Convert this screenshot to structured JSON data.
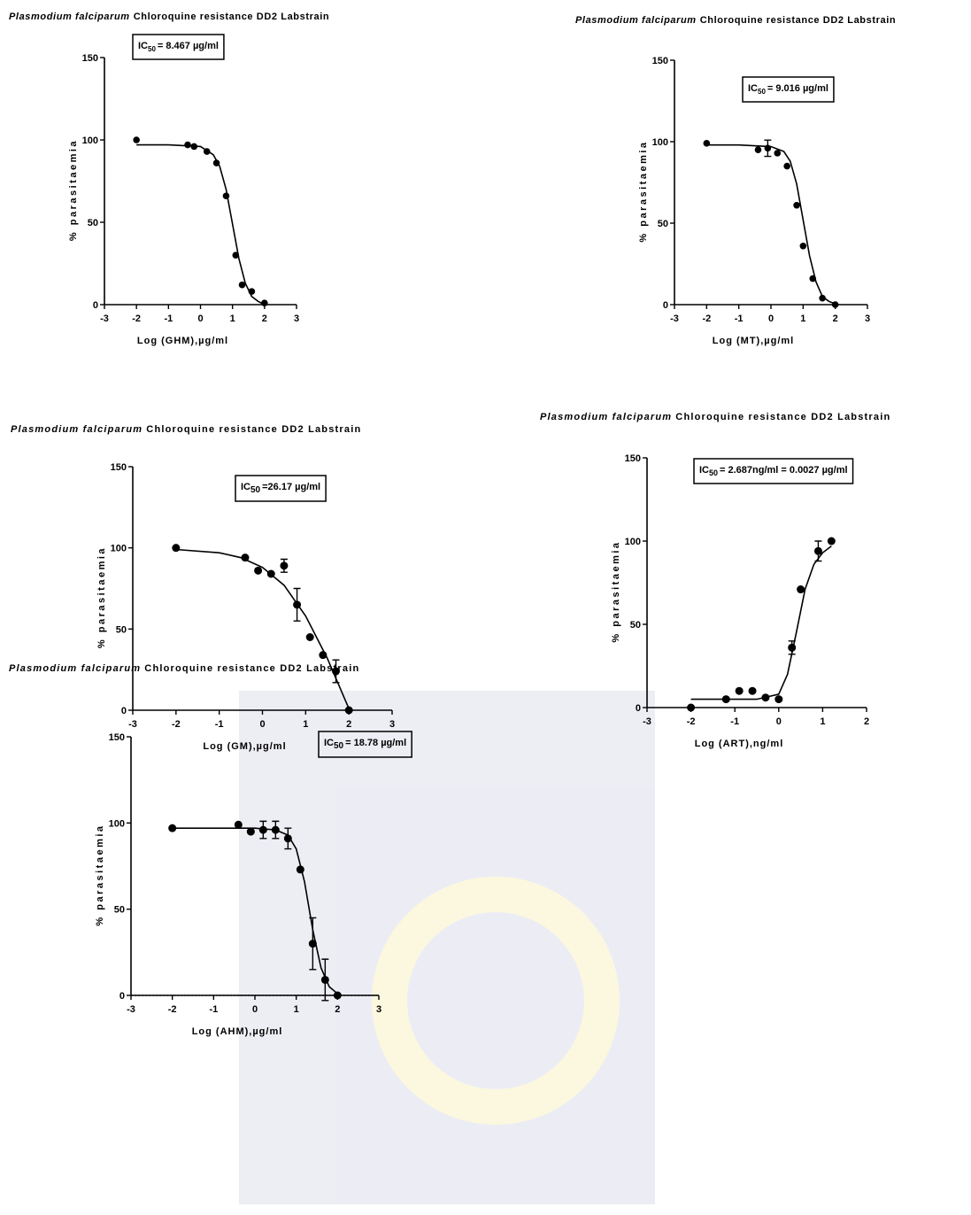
{
  "chart_data": [
    {
      "type": "scatter",
      "title_species": "Plasmodium falciparum",
      "title": "Chloroquine resistance DD2 Labstrain",
      "annotation": {
        "prefix": "IC",
        "subscript": "50",
        "text": "= 8.467 µg/ml"
      },
      "x_label": "Log (GHM),µg/ml",
      "y_label": "% parasitaemia",
      "color": "#000000",
      "x": [
        -2,
        -0.4,
        -0.2,
        0.2,
        0.5,
        0.8,
        1.1,
        1.3,
        1.6,
        2.0
      ],
      "values": [
        100,
        97,
        96,
        93,
        86,
        66,
        30,
        12,
        8,
        1
      ],
      "curve": {
        "x": [
          -2,
          -1,
          0,
          0.4,
          0.6,
          0.8,
          1.0,
          1.2,
          1.4,
          1.6,
          1.8,
          2.0
        ],
        "y": [
          97,
          97,
          96,
          91,
          84,
          70,
          49,
          28,
          13,
          5,
          2,
          0
        ]
      },
      "xlim": [
        -3,
        3
      ],
      "ylim": [
        0,
        150
      ],
      "xticks": [
        -3,
        -2,
        -1,
        0,
        1,
        2,
        3
      ],
      "yticks": [
        0,
        50,
        100,
        150
      ]
    },
    {
      "type": "scatter",
      "title_species": "Plasmodium falciparum",
      "title": "Chloroquine resistance DD2 Labstrain",
      "annotation": {
        "prefix": "IC",
        "subscript": "50",
        "text": "= 9.016 µg/ml"
      },
      "x_label": "Log (MT),µg/ml",
      "y_label": "% parasitaemia",
      "color": "#000000",
      "x": [
        -2,
        -0.4,
        -0.1,
        0.2,
        0.5,
        0.8,
        1.0,
        1.3,
        1.6,
        2.0
      ],
      "values": [
        99,
        95,
        96,
        93,
        85,
        61,
        36,
        16,
        4,
        0
      ],
      "errors": [
        null,
        null,
        5,
        null,
        null,
        null,
        null,
        null,
        null,
        null
      ],
      "curve": {
        "x": [
          -2,
          -1,
          0,
          0.4,
          0.6,
          0.8,
          1.0,
          1.2,
          1.4,
          1.6,
          1.8,
          2.0
        ],
        "y": [
          98,
          98,
          97,
          94,
          88,
          74,
          52,
          30,
          14,
          5,
          2,
          0.5
        ]
      },
      "xlim": [
        -3,
        3
      ],
      "ylim": [
        0,
        150
      ],
      "xticks": [
        -3,
        -2,
        -1,
        0,
        1,
        2,
        3
      ],
      "yticks": [
        0,
        50,
        100,
        150
      ]
    },
    {
      "type": "scatter",
      "title_species": "Plasmodium falciparum",
      "title": "Chloroquine resistance DD2 Labstrain",
      "annotation": {
        "prefix": "IC",
        "subscript": "50",
        "text": "=26.17 µg/ml"
      },
      "x_label": "Log (GM),µg/ml",
      "y_label": "% parasitaemia",
      "color": "#000000",
      "x": [
        -2,
        -0.4,
        -0.1,
        0.2,
        0.5,
        0.8,
        1.1,
        1.4,
        1.7,
        2.0
      ],
      "values": [
        100,
        94,
        86,
        84,
        89,
        65,
        45,
        34,
        24,
        0
      ],
      "errors": [
        null,
        null,
        null,
        null,
        4,
        10,
        null,
        null,
        7,
        null
      ],
      "curve": {
        "x": [
          -2,
          -1,
          -0.5,
          0,
          0.5,
          1,
          1.5,
          2
        ],
        "y": [
          99,
          97,
          94,
          88,
          77,
          58,
          32,
          1
        ]
      },
      "xlim": [
        -3,
        3
      ],
      "ylim": [
        0,
        150
      ],
      "xticks": [
        -3,
        -2,
        -1,
        0,
        1,
        2,
        3
      ],
      "yticks": [
        0,
        50,
        100,
        150
      ]
    },
    {
      "type": "scatter",
      "title_species": "Plasmodium falciparum",
      "title": "Chloroquine resistance DD2 Labstrain",
      "annotation": {
        "prefix": "IC",
        "subscript": "50",
        "text": "= 2.687ng/ml = 0.0027 µg/ml"
      },
      "x_label": "Log (ART),ng/ml",
      "y_label": "% parasitaemia",
      "color": "#000000",
      "x": [
        -2,
        -1.2,
        -0.9,
        -0.6,
        -0.3,
        0,
        0.3,
        0.5,
        0.9,
        1.2
      ],
      "values": [
        0,
        5,
        10,
        10,
        6,
        5,
        36,
        71,
        94,
        100
      ],
      "errors": [
        null,
        null,
        null,
        null,
        null,
        null,
        4,
        null,
        6,
        null
      ],
      "curve": {
        "x": [
          -2,
          -1,
          -0.5,
          0,
          0.2,
          0.4,
          0.6,
          0.8,
          1.0,
          1.2
        ],
        "y": [
          5,
          5,
          5,
          8,
          20,
          45,
          71,
          86,
          93,
          97
        ]
      },
      "xlim": [
        -3,
        2
      ],
      "ylim": [
        0,
        150
      ],
      "xticks": [
        -3,
        -2,
        -1,
        0,
        1,
        2
      ],
      "yticks": [
        0,
        50,
        100,
        150
      ]
    },
    {
      "type": "scatter",
      "title_species": "Plasmodium falciparum",
      "title": "Chloroquine resistance DD2 Labstrain",
      "annotation": {
        "prefix": "IC",
        "subscript": "50",
        "text": "= 18.78 µg/ml"
      },
      "x_label": "Log (AHM),µg/ml",
      "y_label": "% parasitaemia",
      "color": "#000000",
      "x": [
        -2,
        -0.4,
        -0.1,
        0.2,
        0.5,
        0.8,
        1.1,
        1.4,
        1.7,
        2.0
      ],
      "values": [
        97,
        99,
        95,
        96,
        96,
        91,
        73,
        30,
        9,
        0
      ],
      "errors": [
        null,
        null,
        null,
        5,
        5,
        6,
        null,
        15,
        12,
        null
      ],
      "curve": {
        "x": [
          -2,
          -1,
          0,
          0.5,
          0.8,
          1.0,
          1.2,
          1.4,
          1.6,
          1.8,
          2.0
        ],
        "y": [
          97,
          97,
          97,
          96,
          93,
          85,
          66,
          38,
          16,
          5,
          1
        ]
      },
      "reference_line": 0,
      "xlim": [
        -3,
        3
      ],
      "ylim": [
        0,
        150
      ],
      "xticks": [
        -3,
        -2,
        -1,
        0,
        1,
        2,
        3
      ],
      "yticks": [
        0,
        50,
        100,
        150
      ]
    }
  ]
}
